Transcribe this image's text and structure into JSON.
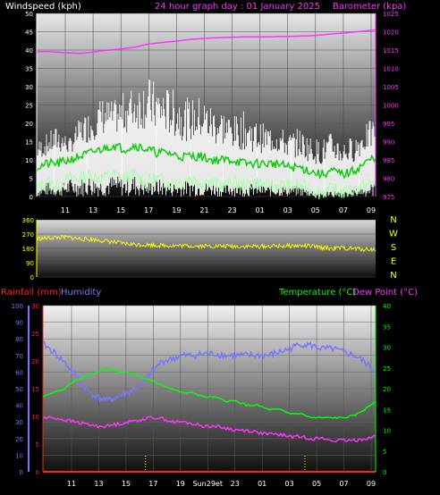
{
  "colors": {
    "wind": "#ffffff",
    "wind_avg": "#00cc00",
    "wind_light": "#aaffaa",
    "barometer": "#ff33ff",
    "direction": "#ffff00",
    "temperature": "#00ff00",
    "dewpoint": "#ff33ff",
    "humidity": "#7777ff",
    "rainfall": "#ff2222",
    "sunrise_sunset": "#ffff00"
  },
  "chart_data": [
    {
      "type": "line",
      "title": "24 hour graph day : 01 January 2025",
      "left_axis_label": "Windspeed (kph)",
      "right_axis_label": "Barometer (kpa)",
      "x_ticks": [
        "11",
        "13",
        "15",
        "17",
        "19",
        "21",
        "23",
        "01",
        "03",
        "05",
        "07",
        "09"
      ],
      "ylim_left": [
        0,
        50
      ],
      "yticks_left": [
        "0",
        "5",
        "10",
        "15",
        "20",
        "25",
        "30",
        "35",
        "40",
        "45",
        "50"
      ],
      "ylim_right": [
        975,
        1025
      ],
      "yticks_right": [
        "975",
        "980",
        "985",
        "990",
        "995",
        "1000",
        "1005",
        "1010",
        "1015",
        "1020",
        "1025"
      ],
      "series": [
        {
          "kind": "barometer",
          "axis": "right",
          "values": [
            1014.5,
            1014.6,
            1014.4,
            1014.2,
            1014.1,
            1014.4,
            1014.8,
            1015.1,
            1015.4,
            1015.8,
            1016.5,
            1016.9,
            1017.2,
            1017.5,
            1017.9,
            1018.1,
            1018.3,
            1018.4,
            1018.5,
            1018.6,
            1018.6,
            1018.6,
            1018.7,
            1018.7,
            1018.8,
            1018.9,
            1019.1,
            1019.4,
            1019.6,
            1019.9,
            1020.2,
            1020.5
          ]
        },
        {
          "kind": "wind_gust_envelope",
          "axis": "left",
          "values": [
            14,
            16,
            18,
            15,
            20,
            22,
            25,
            24,
            26,
            28,
            30,
            28,
            27,
            26,
            24,
            25,
            23,
            22,
            20,
            21,
            19,
            18,
            18,
            16,
            17,
            15,
            14,
            16,
            14,
            15,
            18,
            20
          ]
        },
        {
          "kind": "wind_average",
          "axis": "left",
          "values": [
            8,
            9,
            9,
            10,
            11,
            12,
            13,
            14,
            13,
            14,
            13,
            12,
            12,
            11,
            11,
            11,
            10,
            10,
            10,
            9,
            9,
            9,
            9,
            8,
            8,
            7,
            6,
            7,
            6,
            7,
            9,
            11
          ]
        },
        {
          "kind": "wind_lull",
          "axis": "left",
          "values": [
            2,
            4,
            3,
            5,
            5,
            6,
            5,
            6,
            5,
            6,
            4,
            5,
            4,
            4,
            5,
            4,
            4,
            3,
            4,
            3,
            4,
            3,
            3,
            3,
            3,
            2,
            1,
            2,
            1,
            2,
            3,
            4
          ]
        }
      ]
    },
    {
      "type": "line",
      "compass_labels": [
        "N",
        "W",
        "S",
        "E",
        "N"
      ],
      "x_ticks": [],
      "ylim": [
        0,
        360
      ],
      "yticks": [
        "0",
        "90",
        "180",
        "270",
        "360"
      ],
      "series": [
        {
          "kind": "wind_direction",
          "values": [
            240,
            245,
            250,
            248,
            240,
            236,
            230,
            220,
            210,
            205,
            203,
            200,
            198,
            197,
            196,
            195,
            195,
            194,
            193,
            192,
            192,
            193,
            194,
            195,
            196,
            194,
            185,
            180,
            182,
            178,
            175,
            174
          ]
        }
      ]
    },
    {
      "type": "line",
      "left_axis_label_rain": "Rainfall (mm)",
      "left_axis_label_hum": "Humidity",
      "right_axis_label_temp": "Temperature (°C)",
      "right_axis_label_dew": "Dew Point (°C)",
      "x_ticks": [
        "11",
        "13",
        "15",
        "17",
        "19",
        "Sun29et",
        "23",
        "01",
        "03",
        "05",
        "07",
        "09"
      ],
      "ylim_rain": [
        0,
        30
      ],
      "yticks_rain": [
        "0",
        "5",
        "10",
        "15",
        "20",
        "25",
        "30"
      ],
      "ylim_hum": [
        0,
        100
      ],
      "yticks_hum": [
        "0",
        "10",
        "20",
        "30",
        "40",
        "50",
        "60",
        "70",
        "80",
        "90",
        "100"
      ],
      "ylim_temp": [
        0,
        40
      ],
      "yticks_temp": [
        "0",
        "5",
        "10",
        "15",
        "20",
        "25",
        "30",
        "35",
        "40"
      ],
      "series": [
        {
          "kind": "humidity",
          "axis": "hum",
          "values": [
            77,
            72,
            66,
            58,
            50,
            45,
            43,
            45,
            48,
            51,
            59,
            66,
            68,
            70,
            70,
            71,
            71,
            70,
            70,
            70,
            70,
            70,
            72,
            74,
            77,
            76,
            74,
            74,
            72,
            70,
            66,
            60
          ]
        },
        {
          "kind": "temperature",
          "axis": "temp",
          "values": [
            18,
            19,
            20,
            22,
            23,
            24,
            25,
            24,
            24,
            23,
            22,
            21,
            20,
            19,
            19,
            18,
            18,
            17,
            17,
            16,
            16,
            15,
            15,
            14,
            14,
            13,
            13,
            13,
            13,
            13.5,
            15,
            17
          ]
        },
        {
          "kind": "dewpoint",
          "axis": "temp",
          "values": [
            13,
            13,
            12.5,
            12,
            11.5,
            11,
            11,
            11.5,
            12,
            12.5,
            13,
            13,
            12,
            12,
            11.5,
            11,
            11,
            10.5,
            10,
            10,
            9.5,
            9,
            9,
            8.5,
            8.5,
            8,
            8,
            7.5,
            7.5,
            7.5,
            8,
            8.5
          ]
        },
        {
          "kind": "rainfall",
          "axis": "rain",
          "values": [
            0,
            0,
            0,
            0,
            0,
            0,
            0,
            0,
            0,
            0,
            0,
            0,
            0,
            0,
            0,
            0,
            0,
            0,
            0,
            0,
            0,
            0,
            0,
            0,
            0,
            0,
            0,
            0,
            0,
            0,
            0,
            0
          ]
        }
      ],
      "sun_markers_hour_index": [
        7.4,
        18.9
      ]
    }
  ]
}
